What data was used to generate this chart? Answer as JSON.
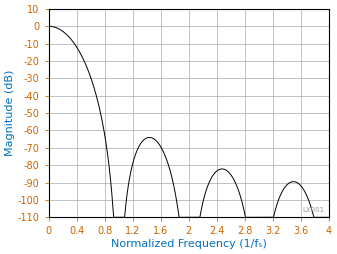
{
  "xlabel": "Normalized Frequency (1/fₛ)",
  "ylabel": "Magnitude (dB)",
  "xlim": [
    0,
    4
  ],
  "ylim": [
    -110,
    10
  ],
  "xticks": [
    0,
    0.4,
    0.8,
    1.2,
    1.6,
    2.0,
    2.4,
    2.8,
    3.2,
    3.6,
    4.0
  ],
  "yticks": [
    10,
    0,
    -10,
    -20,
    -30,
    -40,
    -50,
    -60,
    -70,
    -80,
    -90,
    -100,
    -110
  ],
  "xtick_labels": [
    "0",
    "0.4",
    "0.8",
    "1.2",
    "1.6",
    "2",
    "2.4",
    "2.8",
    "3.2",
    "3.6",
    "4"
  ],
  "ytick_labels": [
    "10",
    "0",
    "-10",
    "-20",
    "-30",
    "-40",
    "-50",
    "-60",
    "-70",
    "-80",
    "-90",
    "-100",
    "-110"
  ],
  "line_color": "#000000",
  "grid_color": "#aaaaaa",
  "bg_color": "#ffffff",
  "axis_label_color": "#0070c0",
  "tick_label_color": "#cc6600",
  "xlabel_fontsize": 8,
  "ylabel_fontsize": 8,
  "tick_fontsize": 7,
  "watermark": "LX001"
}
